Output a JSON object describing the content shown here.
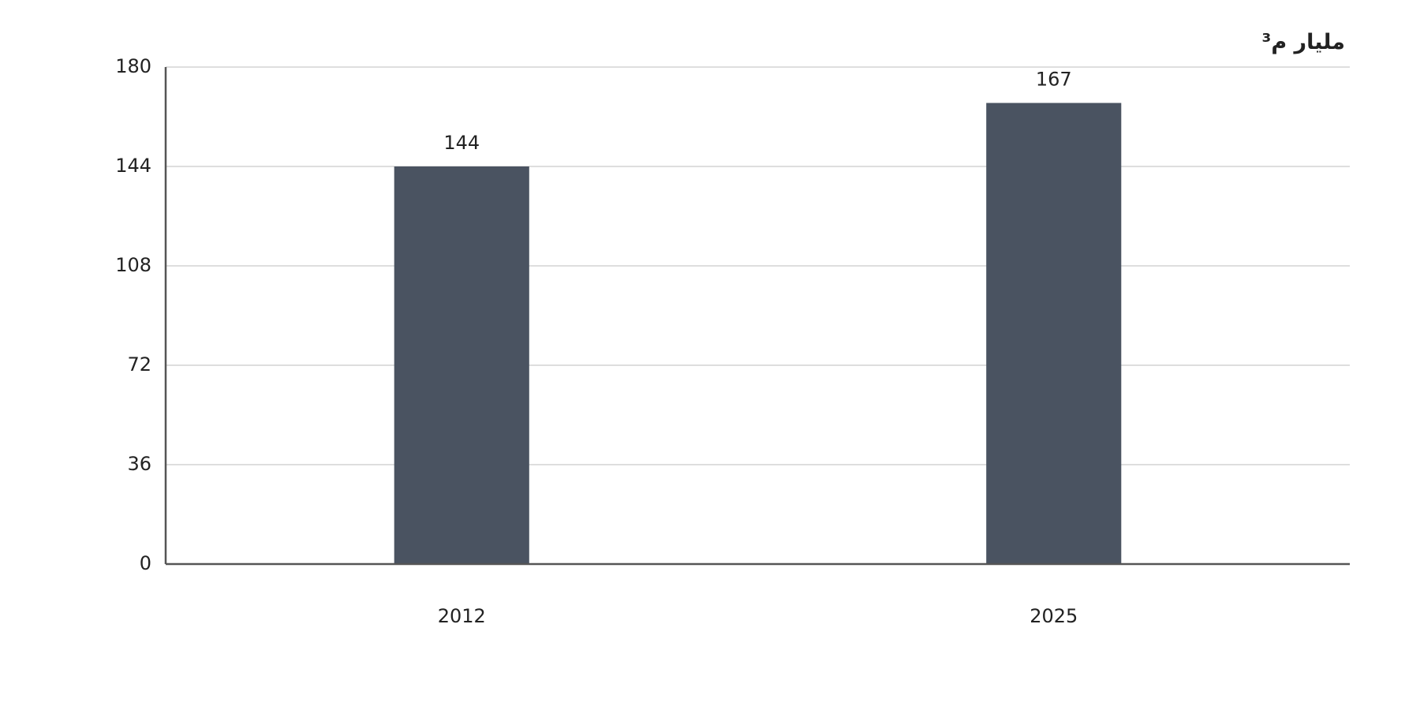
{
  "chart_data": {
    "type": "bar",
    "title": "مليار م³",
    "categories": [
      "2012",
      "2025"
    ],
    "values": [
      144,
      167
    ],
    "color": "#4a5361",
    "ylim": [
      0,
      180
    ],
    "yticks": [
      0,
      36,
      72,
      108,
      144,
      180
    ],
    "grid": true
  }
}
